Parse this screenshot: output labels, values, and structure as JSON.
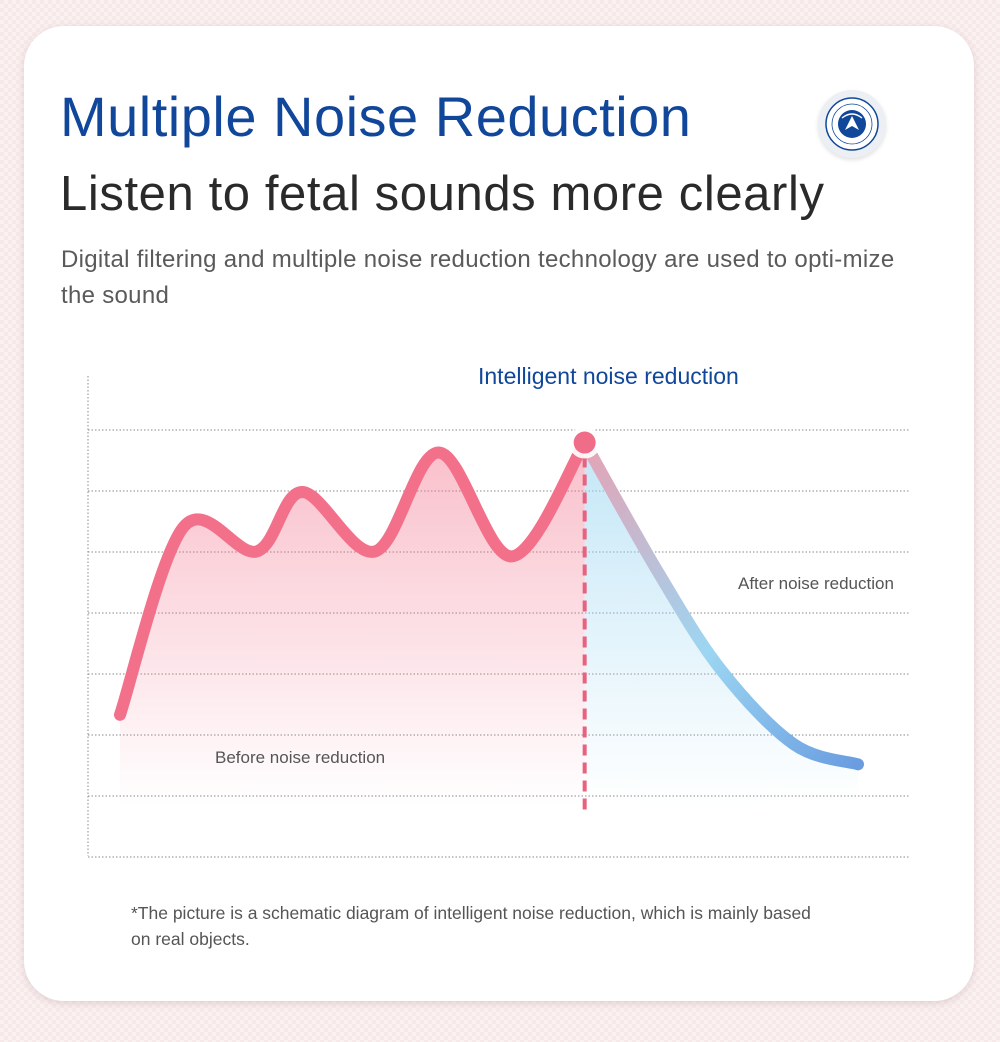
{
  "header": {
    "title": "Multiple Noise Reduction",
    "subtitle": "Listen to fetal sounds more clearly",
    "description": "Digital filtering and multiple noise reduction technology are used to opti-mize the sound"
  },
  "badge": {
    "icon": "certification-seal-icon",
    "color": "#10479a"
  },
  "chart_data": {
    "type": "area",
    "title": "",
    "xlabel": "",
    "ylabel": "",
    "grid": true,
    "highlight_label": "Intelligent noise reduction",
    "series": [
      {
        "name": "Before noise reduction",
        "color": "#f2708a",
        "points": [
          [
            0,
            1.6
          ],
          [
            7,
            5.4
          ],
          [
            15,
            4.9
          ],
          [
            20,
            6.1
          ],
          [
            28,
            4.9
          ],
          [
            35,
            6.9
          ],
          [
            43,
            4.8
          ],
          [
            51,
            7.1
          ]
        ]
      },
      {
        "name": "After noise reduction",
        "color": "#9cd6f2",
        "points": [
          [
            51,
            7.1
          ],
          [
            59,
            4.5
          ],
          [
            66,
            2.5
          ],
          [
            74,
            1.0
          ],
          [
            81,
            0.6
          ]
        ]
      }
    ],
    "annotations": {
      "before_label": "Before noise reduction",
      "after_label": "After noise reduction"
    },
    "colors": {
      "before": "#f2708a",
      "after": "#9cd6f2",
      "after_end": "#6a9de0",
      "highlight_title": "#10479a",
      "grid": "#8a8a8a"
    }
  },
  "footnote": "*The picture is a schematic diagram of intelligent noise reduction, which is mainly based on real objects."
}
